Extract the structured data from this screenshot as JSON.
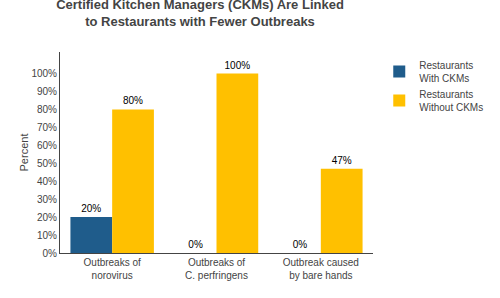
{
  "chart_data": {
    "type": "bar",
    "title": "Certified Kitchen Managers (CKMs) Are Linked\nto Restaurants with Fewer Outbreaks",
    "y_label": "Percent",
    "categories": [
      "Outbreaks of\nnorovirus",
      "Outbreaks of\nC. perfringens",
      "Outbreak caused\nby bare hands"
    ],
    "series": [
      {
        "name": "Restaurants\nWith CKMs",
        "color": "#1f5c8b",
        "values": [
          20,
          0,
          0
        ],
        "value_labels": [
          "20%",
          "0%",
          "0%"
        ]
      },
      {
        "name": "Restaurants\nWithout CKMs",
        "color": "#FFC000",
        "values": [
          80,
          100,
          47
        ],
        "value_labels": [
          "80%",
          "100%",
          "47%"
        ]
      }
    ],
    "ylim": [
      0,
      112
    ],
    "yticks": [
      {
        "value": 0,
        "label": "0%"
      },
      {
        "value": 10,
        "label": "10%"
      },
      {
        "value": 20,
        "label": "20%"
      },
      {
        "value": 30,
        "label": "30%"
      },
      {
        "value": 40,
        "label": "40%"
      },
      {
        "value": 50,
        "label": "50%"
      },
      {
        "value": 60,
        "label": "60%"
      },
      {
        "value": 70,
        "label": "70%"
      },
      {
        "value": 80,
        "label": "80%"
      },
      {
        "value": 90,
        "label": "90%"
      },
      {
        "value": 100,
        "label": "100%"
      }
    ],
    "data_labels": true,
    "grid": false,
    "legend": "right"
  }
}
